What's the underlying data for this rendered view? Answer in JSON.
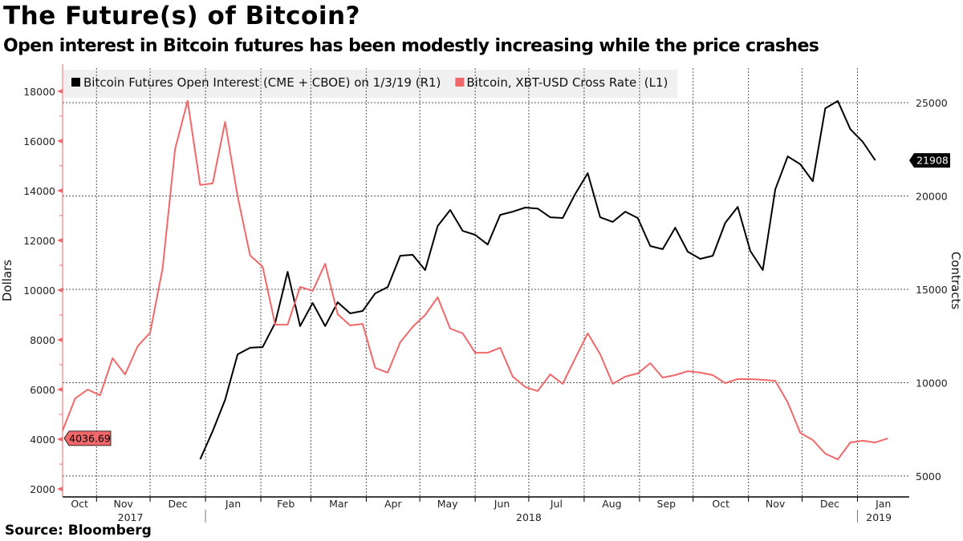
{
  "title": "The Future(s) of Bitcoin?",
  "subtitle": "Open interest in Bitcoin futures has been modestly increasing while the price crashes",
  "source": "Source: Bloomberg",
  "chart_data": {
    "type": "line",
    "title": "The Future(s) of Bitcoin?",
    "subtitle": "Open interest in Bitcoin futures has been modestly increasing while the price crashes",
    "x_range": [
      "2017-10-13",
      "2019-01-30"
    ],
    "x": [
      "2017-10-13",
      "2017-10-20",
      "2017-10-27",
      "2017-11-03",
      "2017-11-10",
      "2017-11-17",
      "2017-11-24",
      "2017-12-01",
      "2017-12-08",
      "2017-12-15",
      "2017-12-22",
      "2017-12-29",
      "2018-01-05",
      "2018-01-12",
      "2018-01-19",
      "2018-01-26",
      "2018-02-02",
      "2018-02-09",
      "2018-02-16",
      "2018-02-23",
      "2018-03-02",
      "2018-03-09",
      "2018-03-16",
      "2018-03-23",
      "2018-03-30",
      "2018-04-06",
      "2018-04-13",
      "2018-04-20",
      "2018-04-27",
      "2018-05-04",
      "2018-05-11",
      "2018-05-18",
      "2018-05-25",
      "2018-06-01",
      "2018-06-08",
      "2018-06-15",
      "2018-06-22",
      "2018-06-29",
      "2018-07-06",
      "2018-07-13",
      "2018-07-20",
      "2018-07-27",
      "2018-08-03",
      "2018-08-10",
      "2018-08-17",
      "2018-08-24",
      "2018-08-31",
      "2018-09-07",
      "2018-09-14",
      "2018-09-21",
      "2018-09-28",
      "2018-10-05",
      "2018-10-12",
      "2018-10-19",
      "2018-10-26",
      "2018-11-02",
      "2018-11-09",
      "2018-11-16",
      "2018-11-23",
      "2018-11-30",
      "2018-12-07",
      "2018-12-14",
      "2018-12-21",
      "2018-12-28",
      "2019-01-04",
      "2019-01-11",
      "2019-01-18"
    ],
    "series": [
      {
        "name": "Bitcoin Futures Open Interest (CME + CBOE) on 1/3/19 (R1)",
        "axis": "right",
        "color": "#000000",
        "last_value_label": "21908",
        "values": [
          null,
          null,
          null,
          null,
          null,
          null,
          null,
          null,
          null,
          null,
          null,
          5900,
          7400,
          9080,
          11520,
          11870,
          11910,
          13200,
          15940,
          13030,
          14270,
          13030,
          14310,
          13710,
          13840,
          14780,
          15120,
          16800,
          16850,
          16030,
          18390,
          19250,
          18130,
          17920,
          17400,
          18990,
          19160,
          19380,
          19330,
          18860,
          18820,
          20110,
          21220,
          18860,
          18610,
          19160,
          18820,
          17320,
          17150,
          18300,
          17020,
          16630,
          16800,
          18560,
          19420,
          17060,
          16030,
          20360,
          22120,
          21700,
          20790,
          24700,
          25090,
          23580,
          22900,
          21908,
          null
        ]
      },
      {
        "name": "Bitcoin, XBT-USD Cross Rate  (L1)",
        "axis": "left",
        "color": "#f0686a",
        "last_value_label": "4036.69",
        "values": [
          4350,
          5640,
          6000,
          5770,
          7260,
          6610,
          7740,
          8290,
          10870,
          15680,
          17610,
          14230,
          14290,
          16770,
          13770,
          11390,
          10940,
          8610,
          8610,
          10130,
          9970,
          11060,
          9030,
          8580,
          8640,
          6870,
          6680,
          7900,
          8520,
          9000,
          9710,
          8450,
          8260,
          7480,
          7480,
          7680,
          6520,
          6100,
          5940,
          6610,
          6230,
          7260,
          8260,
          7420,
          6230,
          6520,
          6650,
          7060,
          6480,
          6580,
          6740,
          6680,
          6580,
          6260,
          6420,
          6420,
          6390,
          6350,
          5480,
          4260,
          3970,
          3420,
          3190,
          3870,
          3940,
          3870,
          4036.69
        ]
      }
    ],
    "y_left": {
      "label": "Dollars",
      "range": [
        1680,
        18930
      ],
      "ticks": [
        2000,
        4000,
        6000,
        8000,
        10000,
        12000,
        14000,
        16000,
        18000
      ],
      "color": "#f0686a"
    },
    "y_right": {
      "label": "Contracts",
      "range": [
        3880,
        26850
      ],
      "ticks": [
        5000,
        10000,
        15000,
        20000,
        25000
      ]
    },
    "x_month_boundaries": [
      "2017-11-01",
      "2017-12-01",
      "2018-01-01",
      "2018-02-01",
      "2018-03-01",
      "2018-04-01",
      "2018-05-01",
      "2018-06-01",
      "2018-07-01",
      "2018-08-01",
      "2018-09-01",
      "2018-10-01",
      "2018-11-01",
      "2018-12-01",
      "2019-01-01"
    ],
    "x_month_labels": [
      "Oct",
      "Nov",
      "Dec",
      "Jan",
      "Feb",
      "Mar",
      "Apr",
      "May",
      "Jun",
      "Jul",
      "Aug",
      "Sep",
      "Oct",
      "Nov",
      "Dec",
      "Jan"
    ],
    "x_year_labels": [
      {
        "label": "2017",
        "date": "2017-11-20"
      },
      {
        "label": "2018",
        "date": "2018-07-01"
      },
      {
        "label": "2019",
        "date": "2019-01-13"
      }
    ],
    "year_boundaries": [
      "2018-01-01",
      "2019-01-01"
    ],
    "grid": true,
    "legend": "top"
  }
}
